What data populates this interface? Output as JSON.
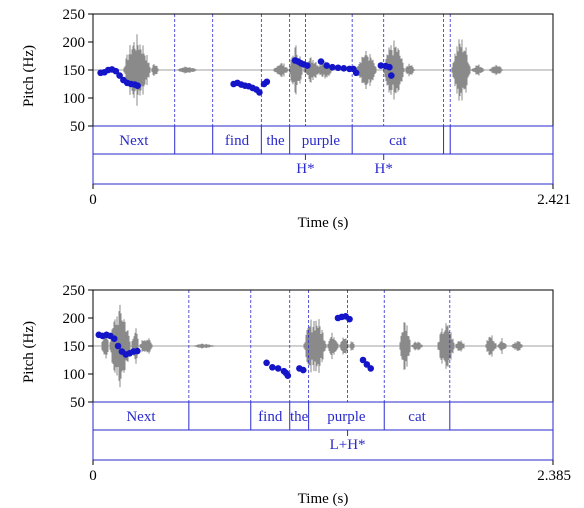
{
  "chart_data": [
    {
      "type": "scatter",
      "ylabel": "Pitch (Hz)",
      "xlabel": "Time (s)",
      "ylim": [
        50,
        250
      ],
      "yticks": [
        50,
        100,
        150,
        200,
        250
      ],
      "xlim": [
        0,
        2.421
      ],
      "xtick_labels": [
        "0",
        "2.421"
      ],
      "word_tier": [
        {
          "label": "Next",
          "start": 0.0,
          "end": 0.43
        },
        {
          "label": "",
          "start": 0.43,
          "end": 0.63
        },
        {
          "label": "find",
          "start": 0.63,
          "end": 0.886
        },
        {
          "label": "the",
          "start": 0.886,
          "end": 1.035
        },
        {
          "label": "purple",
          "start": 1.035,
          "end": 1.364
        },
        {
          "label": "cat",
          "start": 1.364,
          "end": 1.845
        },
        {
          "label": "",
          "start": 1.845,
          "end": 1.88
        },
        {
          "label": "",
          "start": 1.88,
          "end": 2.421
        }
      ],
      "tone_tier": [
        {
          "label": "H*",
          "time": 1.118
        },
        {
          "label": "H*",
          "time": 1.53
        }
      ],
      "series": [
        {
          "values": [
            [
              0.04,
              145
            ],
            [
              0.06,
              146
            ],
            [
              0.08,
              150
            ],
            [
              0.1,
              151
            ],
            [
              0.12,
              148
            ],
            [
              0.14,
              140
            ],
            [
              0.16,
              132
            ],
            [
              0.18,
              127
            ],
            [
              0.2,
              125
            ],
            [
              0.22,
              124
            ],
            [
              0.235,
              122
            ]
          ]
        },
        {
          "values": [
            [
              0.74,
              125
            ],
            [
              0.76,
              127
            ],
            [
              0.78,
              124
            ],
            [
              0.8,
              122
            ],
            [
              0.82,
              121
            ],
            [
              0.84,
              118
            ],
            [
              0.86,
              115
            ],
            [
              0.876,
              110
            ]
          ]
        },
        {
          "values": [
            [
              0.9,
              125
            ],
            [
              0.915,
              129
            ]
          ]
        },
        {
          "values": [
            [
              1.064,
              167
            ],
            [
              1.08,
              165
            ],
            [
              1.095,
              162
            ],
            [
              1.11,
              160
            ],
            [
              1.128,
              158
            ]
          ]
        },
        {
          "values": [
            [
              1.2,
              165
            ],
            [
              1.23,
              158
            ],
            [
              1.26,
              155
            ],
            [
              1.29,
              154
            ],
            [
              1.32,
              153
            ],
            [
              1.35,
              152
            ],
            [
              1.37,
              152
            ],
            [
              1.385,
              145
            ]
          ]
        },
        {
          "values": [
            [
              1.515,
              158
            ],
            [
              1.54,
              157
            ],
            [
              1.56,
              155
            ],
            [
              1.57,
              140
            ]
          ]
        }
      ]
    },
    {
      "type": "scatter",
      "ylabel": "Pitch (Hz)",
      "xlabel": "Time (s)",
      "ylim": [
        50,
        250
      ],
      "yticks": [
        50,
        100,
        150,
        200,
        250
      ],
      "xlim": [
        0,
        2.385
      ],
      "xtick_labels": [
        "0",
        "2.385"
      ],
      "word_tier": [
        {
          "label": "Next",
          "start": 0.0,
          "end": 0.497
        },
        {
          "label": "",
          "start": 0.497,
          "end": 0.818
        },
        {
          "label": "find",
          "start": 0.818,
          "end": 1.02
        },
        {
          "label": "the",
          "start": 1.02,
          "end": 1.118
        },
        {
          "label": "purple",
          "start": 1.118,
          "end": 1.51
        },
        {
          "label": "cat",
          "start": 1.51,
          "end": 1.85
        },
        {
          "label": "",
          "start": 1.85,
          "end": 2.385
        }
      ],
      "tone_tier": [
        {
          "label": "L+H*",
          "time": 1.32
        }
      ],
      "series": [
        {
          "values": [
            [
              0.03,
              170
            ],
            [
              0.05,
              168
            ],
            [
              0.07,
              170
            ],
            [
              0.09,
              168
            ],
            [
              0.11,
              163
            ],
            [
              0.13,
              150
            ],
            [
              0.15,
              140
            ],
            [
              0.17,
              135
            ],
            [
              0.19,
              137
            ],
            [
              0.21,
              140
            ],
            [
              0.23,
              141
            ]
          ]
        },
        {
          "values": [
            [
              0.9,
              120
            ],
            [
              0.93,
              112
            ],
            [
              0.96,
              110
            ],
            [
              0.99,
              105
            ],
            [
              1.0,
              102
            ],
            [
              1.01,
              97
            ]
          ]
        },
        {
          "values": [
            [
              1.07,
              110
            ],
            [
              1.09,
              107
            ]
          ]
        },
        {
          "values": [
            [
              1.27,
              200
            ],
            [
              1.29,
              202
            ],
            [
              1.31,
              203
            ],
            [
              1.33,
              198
            ]
          ]
        },
        {
          "values": [
            [
              1.4,
              125
            ],
            [
              1.42,
              117
            ],
            [
              1.44,
              110
            ]
          ]
        }
      ]
    }
  ]
}
